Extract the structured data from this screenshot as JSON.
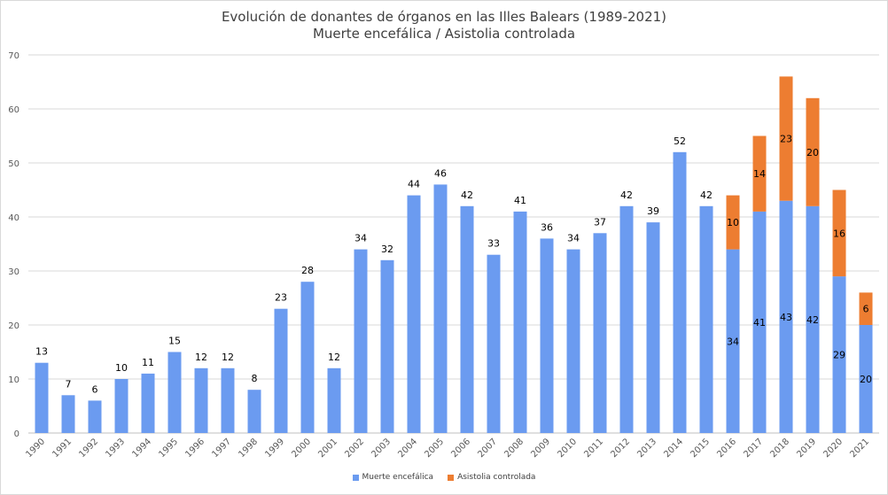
{
  "chart_data": {
    "type": "bar",
    "stacked": true,
    "title": "Evolución de donantes de órganos en las Illes Balears (1989-2021)",
    "subtitle": "Muerte encefálica / Asistolia controlada",
    "categories": [
      "1990",
      "1991",
      "1992",
      "1993",
      "1994",
      "1995",
      "1996",
      "1997",
      "1998",
      "1999",
      "2000",
      "2001",
      "2002",
      "2003",
      "2004",
      "2005",
      "2006",
      "2007",
      "2008",
      "2009",
      "2010",
      "2011",
      "2012",
      "2013",
      "2014",
      "2015",
      "2016",
      "2017",
      "2018",
      "2019",
      "2020",
      "2021"
    ],
    "series": [
      {
        "name": "Muerte encefálica",
        "color": "#6b9bf0",
        "values": [
          13,
          7,
          6,
          10,
          11,
          15,
          12,
          12,
          8,
          23,
          28,
          12,
          34,
          32,
          44,
          46,
          42,
          33,
          41,
          36,
          34,
          37,
          42,
          39,
          52,
          42,
          34,
          41,
          43,
          42,
          29,
          20
        ]
      },
      {
        "name": "Asistolia controlada",
        "color": "#ed7d31",
        "values": [
          0,
          0,
          0,
          0,
          0,
          0,
          0,
          0,
          0,
          0,
          0,
          0,
          0,
          0,
          0,
          0,
          0,
          0,
          0,
          0,
          0,
          0,
          0,
          0,
          0,
          0,
          10,
          14,
          23,
          20,
          16,
          6
        ]
      }
    ],
    "ylim": [
      0,
      70
    ],
    "yticks": [
      0,
      10,
      20,
      30,
      40,
      50,
      60,
      70
    ],
    "grid": true,
    "legend_position": "bottom",
    "total_labels": [
      "13",
      "7",
      "6",
      "10",
      "11",
      "15",
      "12",
      "12",
      "8",
      "23",
      "28",
      "12",
      "34",
      "32",
      "44",
      "46",
      "42",
      "33",
      "41",
      "36",
      "34",
      "37",
      "42",
      "39",
      "52",
      "42",
      "",
      "",
      "",
      "",
      "",
      ""
    ]
  }
}
